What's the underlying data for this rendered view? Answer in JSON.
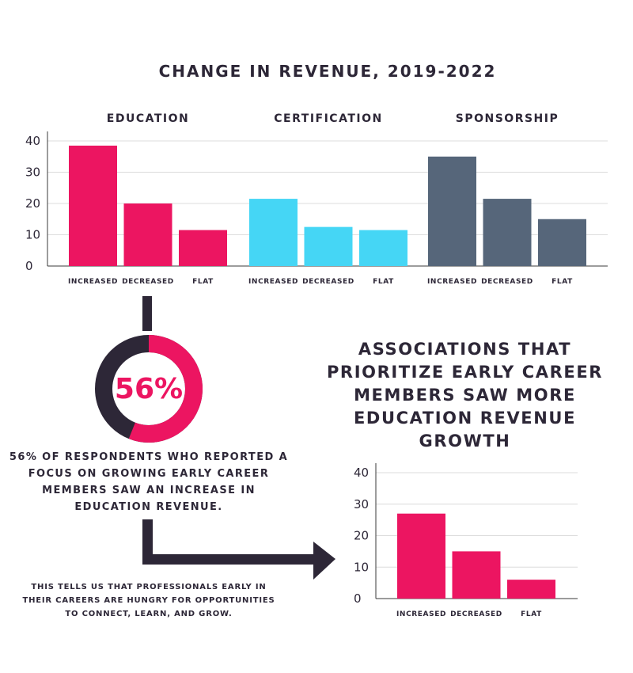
{
  "title": "CHANGE IN REVENUE, 2019-2022",
  "headline": "ASSOCIATIONS THAT PRIORITIZE EARLY CAREER MEMBERS SAW MORE EDUCATION REVENUE GROWTH",
  "stat": {
    "value": "56%",
    "fraction": 0.56
  },
  "description": "56% OF RESPONDENTS WHO REPORTED A FOCUS ON GROWING EARLY CAREER MEMBERS SAW AN INCREASE IN EDUCATION REVENUE.",
  "note": "THIS TELLS US THAT PROFESSIONALS EARLY IN THEIR CAREERS ARE HUNGRY FOR OPPORTUNITIES TO CONNECT, LEARN, AND GROW.",
  "colors": {
    "education": "#ec1561",
    "certification": "#45d6f5",
    "sponsorship": "#56667a",
    "dark": "#2d2737"
  },
  "chart_data": [
    {
      "type": "bar",
      "title": "CHANGE IN REVENUE, 2019-2022",
      "ylim": [
        0,
        40
      ],
      "yticks": [
        0,
        10,
        20,
        30,
        40
      ],
      "grid": true,
      "panels": [
        {
          "name": "EDUCATION",
          "categories": [
            "INCREASED",
            "DECREASED",
            "FLAT"
          ],
          "values": [
            38.5,
            20,
            11.5
          ],
          "color": "#ec1561"
        },
        {
          "name": "CERTIFICATION",
          "categories": [
            "INCREASED",
            "DECREASED",
            "FLAT"
          ],
          "values": [
            21.5,
            12.5,
            11.5
          ],
          "color": "#45d6f5"
        },
        {
          "name": "SPONSORSHIP",
          "categories": [
            "INCREASED",
            "DECREASED",
            "FLAT"
          ],
          "values": [
            35,
            21.5,
            15
          ],
          "color": "#56667a"
        }
      ]
    },
    {
      "type": "bar",
      "title": "ASSOCIATIONS THAT PRIORITIZE EARLY CAREER MEMBERS SAW MORE EDUCATION REVENUE GROWTH",
      "ylim": [
        0,
        40
      ],
      "yticks": [
        0,
        10,
        20,
        30,
        40
      ],
      "grid": true,
      "categories": [
        "INCREASED",
        "DECREASED",
        "FLAT"
      ],
      "values": [
        27,
        15,
        6
      ],
      "color": "#ec1561"
    }
  ]
}
